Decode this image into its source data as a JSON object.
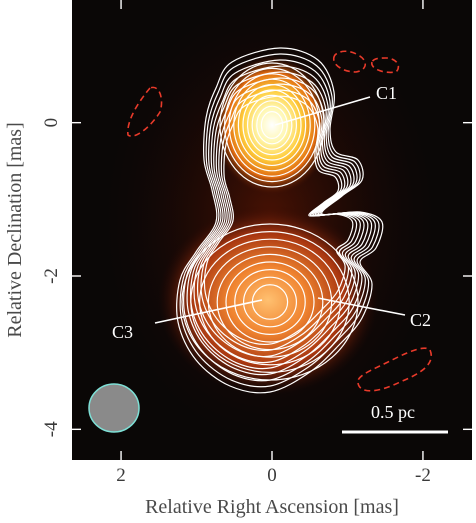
{
  "figure": {
    "xlabel": "Relative Right Ascension [mas]",
    "ylabel": "Relative Declination [mas]",
    "x_ticks": [
      "2",
      "0",
      "-2"
    ],
    "y_ticks": [
      "0",
      "-2",
      "-4"
    ],
    "x_tick_values": [
      2,
      0,
      -2
    ],
    "y_tick_values": [
      0,
      -2,
      -4
    ],
    "x_range": [
      2.65,
      -2.65
    ],
    "y_range": [
      1.6,
      -4.4
    ],
    "components": [
      {
        "label": "C1",
        "ra": 0.0,
        "dec": 0.0
      },
      {
        "label": "C2",
        "ra": -0.55,
        "dec": -2.35
      },
      {
        "label": "C3",
        "ra": 0.35,
        "dec": -2.5
      }
    ],
    "scale_bar_label": "0.5 pc",
    "colors": {
      "background": "#0a0706",
      "contour": "#ffffff",
      "negative_contour": "#e83a2a",
      "beam_fill": "#8a8a8a",
      "beam_edge": "#7ee0d6"
    }
  }
}
